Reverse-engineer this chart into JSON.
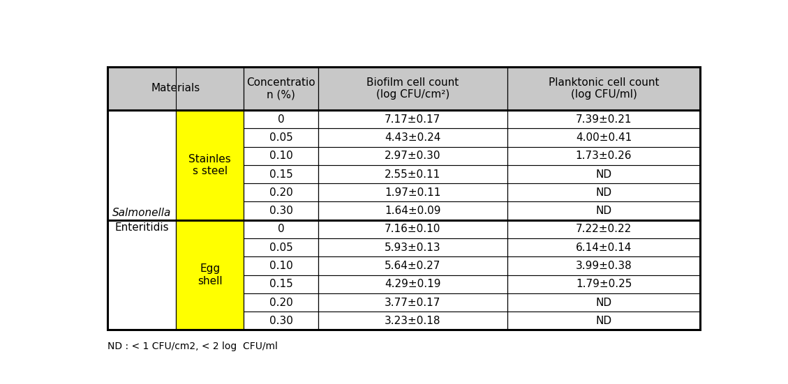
{
  "footnote": "ND : < 1 CFU/cm2, < 2 log  CFU/ml",
  "header_bg": "#C8C8C8",
  "sub_material_color": "#FFFF00",
  "border_color": "#000000",
  "concentrations_ss": [
    "0",
    "0.05",
    "0.10",
    "0.15",
    "0.20",
    "0.30"
  ],
  "concentrations_egg": [
    "0",
    "0.05",
    "0.10",
    "0.15",
    "0.20",
    "0.30"
  ],
  "biofilm_ss": [
    "7.17±0.17",
    "4.43±0.24",
    "2.97±0.30",
    "2.55±0.11",
    "1.97±0.11",
    "1.64±0.09"
  ],
  "planktonic_ss": [
    "7.39±0.21",
    "4.00±0.41",
    "1.73±0.26",
    "ND",
    "ND",
    "ND"
  ],
  "biofilm_egg": [
    "7.16±0.10",
    "5.93±0.13",
    "5.64±0.27",
    "4.29±0.19",
    "3.77±0.17",
    "3.23±0.18"
  ],
  "planktonic_egg": [
    "7.22±0.22",
    "6.14±0.14",
    "3.99±0.38",
    "1.79±0.25",
    "ND",
    "ND"
  ],
  "font_size": 11,
  "header_font_size": 11
}
